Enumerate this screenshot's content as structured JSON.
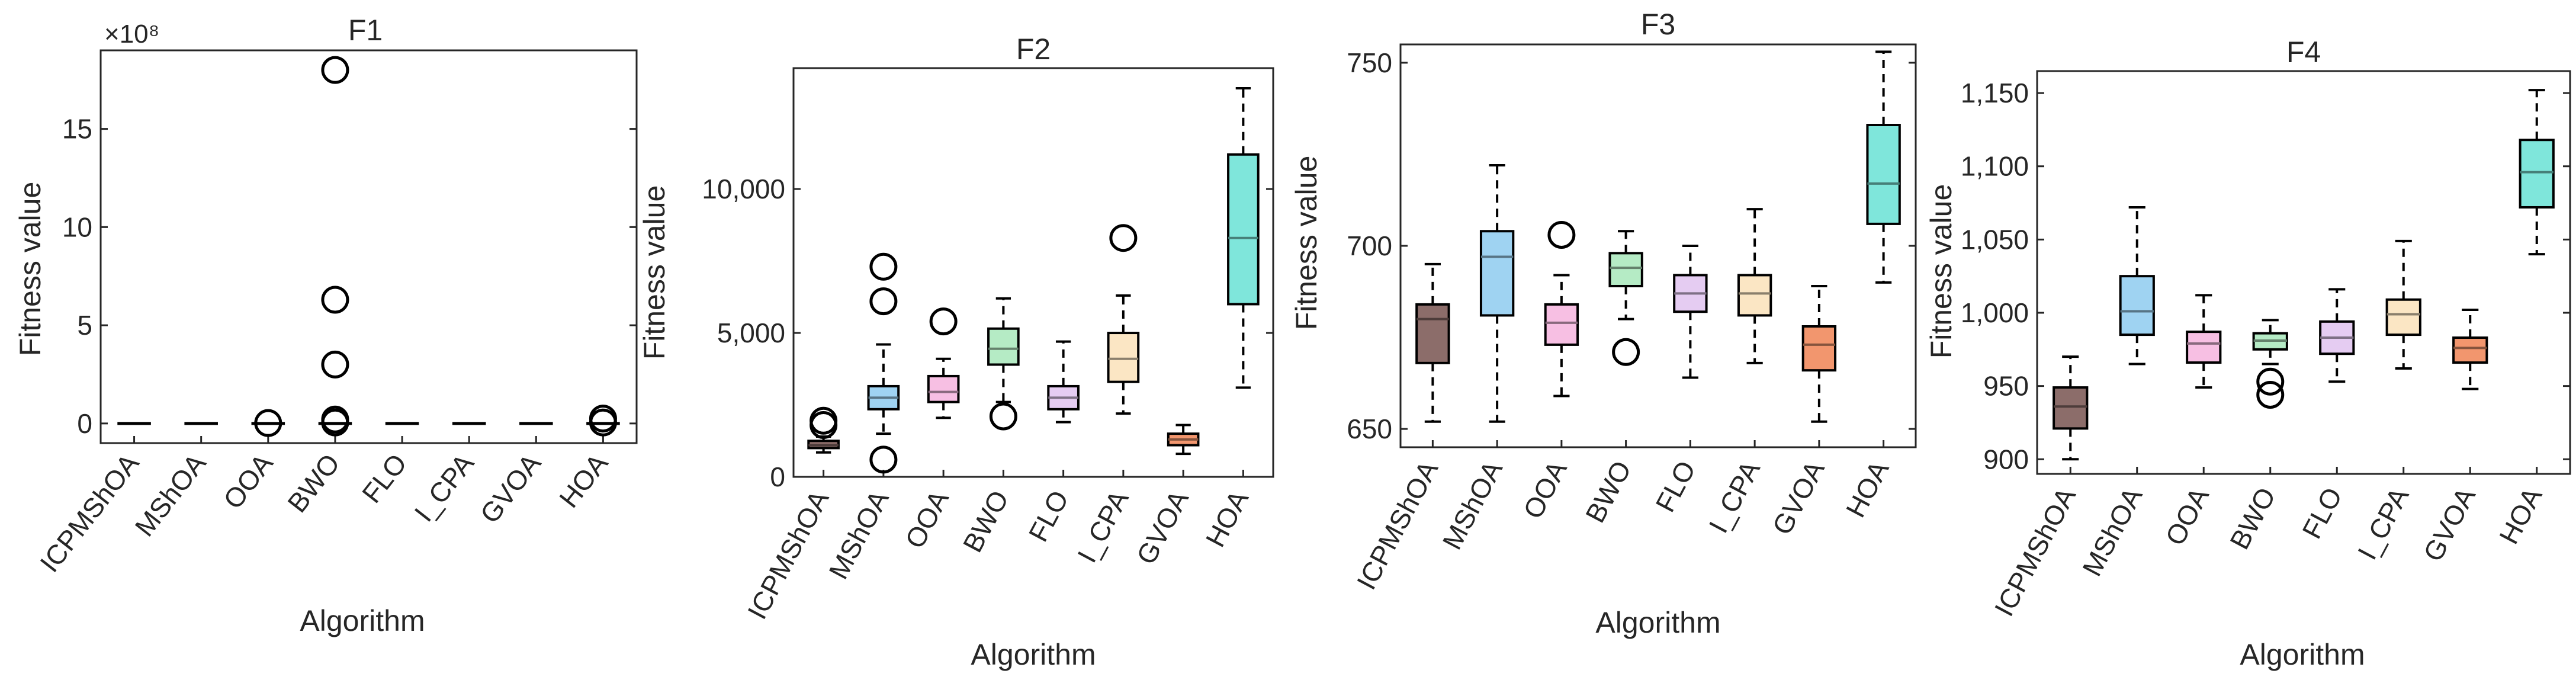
{
  "figure": {
    "panels": [
      {
        "title": "F1",
        "xlabel": "Algorithm",
        "ylabel": "Fitness value",
        "exponent": "×10⁸"
      },
      {
        "title": "F2",
        "xlabel": "Algorithm",
        "ylabel": "Fitness value"
      },
      {
        "title": "F3",
        "xlabel": "Algorithm",
        "ylabel": "Fitness value"
      },
      {
        "title": "F4",
        "xlabel": "Algorithm",
        "ylabel": "Fitness value"
      }
    ]
  },
  "chart_data": [
    {
      "type": "box",
      "title": "F1",
      "xlabel": "Algorithm",
      "ylabel": "Fitness value",
      "y_multiplier": "×10^8",
      "ylim": [
        -1,
        19
      ],
      "yticks": [
        0,
        5,
        10,
        15
      ],
      "ytick_labels": [
        "0",
        "5",
        "10",
        "15"
      ],
      "categories": [
        "ICPMShOA",
        "MShOA",
        "OOA",
        "BWO",
        "FLO",
        "I_CPA",
        "GVOA",
        "HOA"
      ],
      "boxes": [
        {
          "q1": 0,
          "median": 0,
          "q3": 0,
          "whisker_low": 0,
          "whisker_high": 0,
          "outliers": [],
          "color": "#000000"
        },
        {
          "q1": 0,
          "median": 0,
          "q3": 0,
          "whisker_low": 0,
          "whisker_high": 0,
          "outliers": [],
          "color": "#000000"
        },
        {
          "q1": 0,
          "median": 0,
          "q3": 0,
          "whisker_low": 0,
          "whisker_high": 0,
          "outliers": [
            0.02
          ],
          "color": "#000000"
        },
        {
          "q1": 0,
          "median": 0,
          "q3": 0,
          "whisker_low": 0,
          "whisker_high": 0,
          "outliers": [
            18,
            6.3,
            3.0,
            0.2,
            0.05
          ],
          "color": "#000000"
        },
        {
          "q1": 0,
          "median": 0,
          "q3": 0,
          "whisker_low": 0,
          "whisker_high": 0,
          "outliers": [],
          "color": "#000000"
        },
        {
          "q1": 0,
          "median": 0,
          "q3": 0,
          "whisker_low": 0,
          "whisker_high": 0,
          "outliers": [],
          "color": "#000000"
        },
        {
          "q1": 0,
          "median": 0,
          "q3": 0,
          "whisker_low": 0,
          "whisker_high": 0,
          "outliers": [],
          "color": "#000000"
        },
        {
          "q1": 0,
          "median": 0,
          "q3": 0,
          "whisker_low": 0,
          "whisker_high": 0,
          "outliers": [
            0.25,
            0.05
          ],
          "color": "#000000"
        }
      ]
    },
    {
      "type": "box",
      "title": "F2",
      "xlabel": "Algorithm",
      "ylabel": "Fitness value",
      "ylim": [
        0,
        14200
      ],
      "yticks": [
        0,
        5000,
        10000
      ],
      "ytick_labels": [
        "0",
        "5,000",
        "10,000"
      ],
      "categories": [
        "ICPMShOA",
        "MShOA",
        "OOA",
        "BWO",
        "FLO",
        "I_CPA",
        "GVOA",
        "HOA"
      ],
      "boxes": [
        {
          "q1": 1000,
          "median": 1100,
          "q3": 1250,
          "whisker_low": 850,
          "whisker_high": 1400,
          "outliers": [
            1800,
            1950
          ],
          "color": "#8C6D6A"
        },
        {
          "q1": 2350,
          "median": 2750,
          "q3": 3150,
          "whisker_low": 1500,
          "whisker_high": 4600,
          "outliers": [
            7300,
            6100,
            600
          ],
          "color": "#9FD3F2"
        },
        {
          "q1": 2600,
          "median": 2950,
          "q3": 3500,
          "whisker_low": 2050,
          "whisker_high": 4100,
          "outliers": [
            5400
          ],
          "color": "#F7BFE3"
        },
        {
          "q1": 3900,
          "median": 4450,
          "q3": 5150,
          "whisker_low": 2600,
          "whisker_high": 6200,
          "outliers": [
            2100
          ],
          "color": "#B5EBC5"
        },
        {
          "q1": 2350,
          "median": 2750,
          "q3": 3150,
          "whisker_low": 1900,
          "whisker_high": 4700,
          "outliers": [],
          "color": "#E5CCF2"
        },
        {
          "q1": 3300,
          "median": 4100,
          "q3": 5000,
          "whisker_low": 2200,
          "whisker_high": 6300,
          "outliers": [
            8300
          ],
          "color": "#FBE6C4"
        },
        {
          "q1": 1100,
          "median": 1300,
          "q3": 1500,
          "whisker_low": 800,
          "whisker_high": 1800,
          "outliers": [],
          "color": "#F2966E"
        },
        {
          "q1": 6000,
          "median": 8300,
          "q3": 11200,
          "whisker_low": 3100,
          "whisker_high": 13500,
          "outliers": [],
          "color": "#7FE6DB"
        }
      ]
    },
    {
      "type": "box",
      "title": "F3",
      "xlabel": "Algorithm",
      "ylabel": "Fitness value",
      "ylim": [
        645,
        755
      ],
      "yticks": [
        650,
        700,
        750
      ],
      "ytick_labels": [
        "650",
        "700",
        "750"
      ],
      "categories": [
        "ICPMShOA",
        "MShOA",
        "OOA",
        "BWO",
        "FLO",
        "I_CPA",
        "GVOA",
        "HOA"
      ],
      "boxes": [
        {
          "q1": 668,
          "median": 680,
          "q3": 684,
          "whisker_low": 652,
          "whisker_high": 695,
          "outliers": [],
          "color": "#8C6D6A"
        },
        {
          "q1": 681,
          "median": 697,
          "q3": 704,
          "whisker_low": 652,
          "whisker_high": 722,
          "outliers": [],
          "color": "#9FD3F2"
        },
        {
          "q1": 673,
          "median": 679,
          "q3": 684,
          "whisker_low": 659,
          "whisker_high": 692,
          "outliers": [
            703
          ],
          "color": "#F7BFE3"
        },
        {
          "q1": 689,
          "median": 694,
          "q3": 698,
          "whisker_low": 680,
          "whisker_high": 704,
          "outliers": [
            671
          ],
          "color": "#B5EBC5"
        },
        {
          "q1": 682,
          "median": 687,
          "q3": 692,
          "whisker_low": 664,
          "whisker_high": 700,
          "outliers": [],
          "color": "#E5CCF2"
        },
        {
          "q1": 681,
          "median": 687,
          "q3": 692,
          "whisker_low": 668,
          "whisker_high": 710,
          "outliers": [],
          "color": "#FBE6C4"
        },
        {
          "q1": 666,
          "median": 673,
          "q3": 678,
          "whisker_low": 652,
          "whisker_high": 689,
          "outliers": [],
          "color": "#F2966E"
        },
        {
          "q1": 706,
          "median": 717,
          "q3": 733,
          "whisker_low": 690,
          "whisker_high": 753,
          "outliers": [],
          "color": "#7FE6DB"
        }
      ]
    },
    {
      "type": "box",
      "title": "F4",
      "xlabel": "Algorithm",
      "ylabel": "Fitness value",
      "ylim": [
        890,
        1165
      ],
      "yticks": [
        900,
        950,
        1000,
        1050,
        1100,
        1150
      ],
      "ytick_labels": [
        "900",
        "950",
        "1,000",
        "1,050",
        "1,100",
        "1,150"
      ],
      "categories": [
        "ICPMShOA",
        "MShOA",
        "OOA",
        "BWO",
        "FLO",
        "I_CPA",
        "GVOA",
        "HOA"
      ],
      "boxes": [
        {
          "q1": 921,
          "median": 936,
          "q3": 949,
          "whisker_low": 900,
          "whisker_high": 970,
          "outliers": [],
          "color": "#8C6D6A"
        },
        {
          "q1": 985,
          "median": 1001,
          "q3": 1025,
          "whisker_low": 965,
          "whisker_high": 1072,
          "outliers": [],
          "color": "#9FD3F2"
        },
        {
          "q1": 966,
          "median": 979,
          "q3": 987,
          "whisker_low": 949,
          "whisker_high": 1012,
          "outliers": [],
          "color": "#F7BFE3"
        },
        {
          "q1": 975,
          "median": 981,
          "q3": 986,
          "whisker_low": 965,
          "whisker_high": 995,
          "outliers": [
            953,
            944
          ],
          "color": "#B5EBC5"
        },
        {
          "q1": 972,
          "median": 983,
          "q3": 994,
          "whisker_low": 953,
          "whisker_high": 1016,
          "outliers": [],
          "color": "#E5CCF2"
        },
        {
          "q1": 985,
          "median": 999,
          "q3": 1009,
          "whisker_low": 962,
          "whisker_high": 1049,
          "outliers": [],
          "color": "#FBE6C4"
        },
        {
          "q1": 966,
          "median": 976,
          "q3": 983,
          "whisker_low": 948,
          "whisker_high": 1002,
          "outliers": [],
          "color": "#F2966E"
        },
        {
          "q1": 1072,
          "median": 1096,
          "q3": 1118,
          "whisker_low": 1040,
          "whisker_high": 1152,
          "outliers": [],
          "color": "#7FE6DB"
        }
      ]
    }
  ]
}
